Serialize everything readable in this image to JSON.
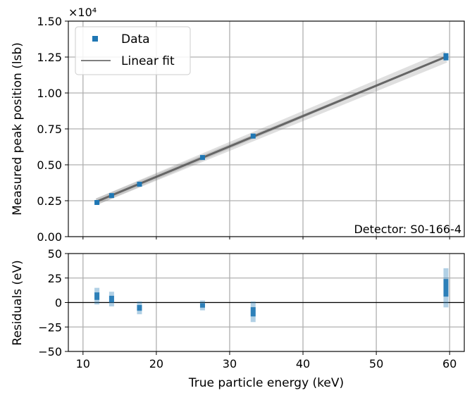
{
  "chart_data": [
    {
      "type": "scatter",
      "panel": "top",
      "ylabel": "Measured peak position (lsb)",
      "offset_label": "×10⁴",
      "ylim": [
        0.0,
        1.5
      ],
      "xlim": [
        8,
        62
      ],
      "yticks": [
        0.0,
        0.25,
        0.5,
        0.75,
        1.0,
        1.25,
        1.5
      ],
      "ytick_labels": [
        "0.00",
        "0.25",
        "0.50",
        "0.75",
        "1.00",
        "1.25",
        "1.50"
      ],
      "grid": true,
      "legend_position": "top-left",
      "annotation": "Detector: S0-166-4",
      "series": [
        {
          "name": "Data",
          "kind": "points",
          "color": "#1f77b4",
          "x": [
            11.9,
            13.9,
            17.7,
            26.3,
            33.2,
            59.5
          ],
          "y": [
            0.245,
            0.293,
            0.372,
            0.553,
            0.7,
            1.252
          ],
          "spread": [
            0.02,
            0.02,
            0.02,
            0.03,
            0.035,
            0.05
          ]
        },
        {
          "name": "Linear fit",
          "kind": "line",
          "color": "#808080",
          "x": [
            11.9,
            59.5
          ],
          "y": [
            0.245,
            1.252
          ]
        }
      ]
    },
    {
      "type": "scatter",
      "panel": "bottom",
      "xlabel": "True particle energy (keV)",
      "ylabel": "Residuals (eV)",
      "xlim": [
        8,
        62
      ],
      "ylim": [
        -50,
        50
      ],
      "xticks": [
        10,
        20,
        30,
        40,
        50,
        60
      ],
      "xtick_labels": [
        "10",
        "20",
        "30",
        "40",
        "50",
        "60"
      ],
      "yticks": [
        -50,
        -25,
        0,
        25,
        50
      ],
      "ytick_labels": [
        "−50",
        "−25",
        "0",
        "25",
        "50"
      ],
      "grid": true,
      "zero_line": true,
      "series": [
        {
          "name": "Residuals",
          "color": "#1f77b4",
          "x": [
            11.9,
            13.9,
            17.7,
            26.3,
            33.2,
            59.5
          ],
          "ymin": [
            -2,
            -4,
            -12,
            -8,
            -20,
            -5
          ],
          "ymax": [
            15,
            11,
            1,
            2,
            1,
            35
          ]
        }
      ]
    }
  ]
}
